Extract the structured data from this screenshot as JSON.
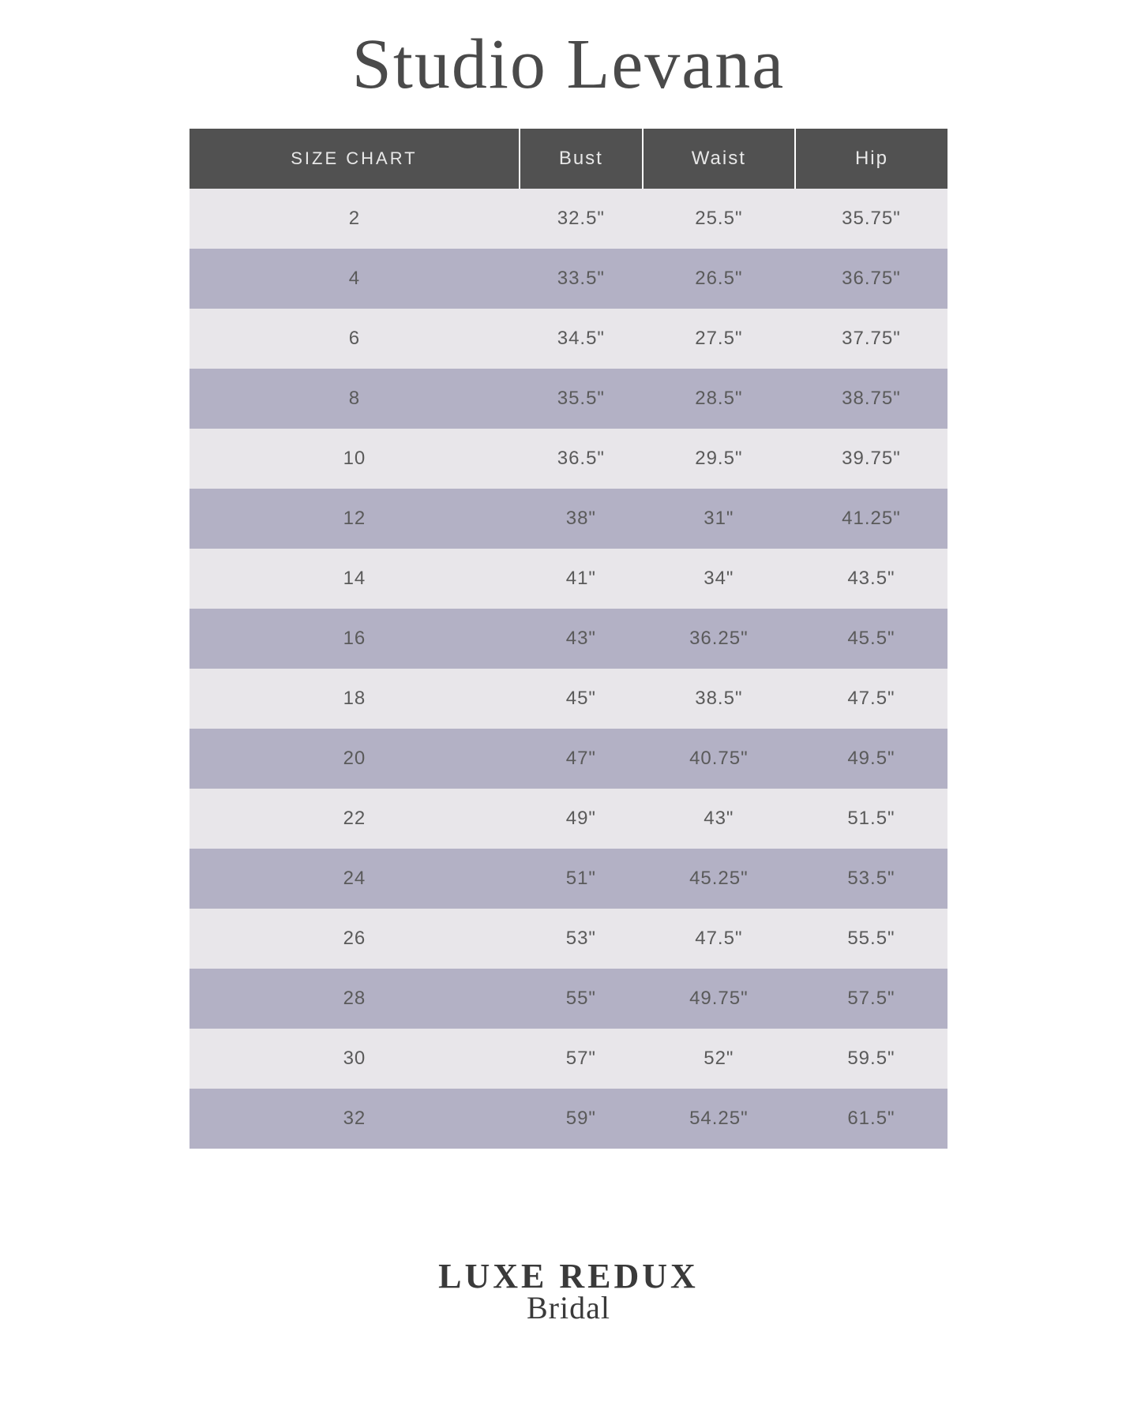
{
  "brand_title": "Studio Levana",
  "footer": {
    "line1": "LUXE REDUX",
    "line2": "Bridal"
  },
  "colors": {
    "page_bg": "#ffffff",
    "header_bg": "#515151",
    "header_text": "#e8e8e8",
    "row_light": "#e8e6ea",
    "row_dark": "#b3b1c5",
    "cell_text": "#5a5a5a",
    "title_text": "#4a4a4a",
    "footer_text": "#3a3a3a"
  },
  "table": {
    "columns": [
      "SIZE CHART",
      "Bust",
      "Waist",
      "Hip"
    ],
    "rows": [
      [
        "2",
        "32.5\"",
        "25.5\"",
        "35.75\""
      ],
      [
        "4",
        "33.5\"",
        "26.5\"",
        "36.75\""
      ],
      [
        "6",
        "34.5\"",
        "27.5\"",
        "37.75\""
      ],
      [
        "8",
        "35.5\"",
        "28.5\"",
        "38.75\""
      ],
      [
        "10",
        "36.5\"",
        "29.5\"",
        "39.75\""
      ],
      [
        "12",
        "38\"",
        "31\"",
        "41.25\""
      ],
      [
        "14",
        "41\"",
        "34\"",
        "43.5\""
      ],
      [
        "16",
        "43\"",
        "36.25\"",
        "45.5\""
      ],
      [
        "18",
        "45\"",
        "38.5\"",
        "47.5\""
      ],
      [
        "20",
        "47\"",
        "40.75\"",
        "49.5\""
      ],
      [
        "22",
        "49\"",
        "43\"",
        "51.5\""
      ],
      [
        "24",
        "51\"",
        "45.25\"",
        "53.5\""
      ],
      [
        "26",
        "53\"",
        "47.5\"",
        "55.5\""
      ],
      [
        "28",
        "55\"",
        "49.75\"",
        "57.5\""
      ],
      [
        "30",
        "57\"",
        "52\"",
        "59.5\""
      ],
      [
        "32",
        "59\"",
        "54.25\"",
        "61.5\""
      ]
    ]
  }
}
